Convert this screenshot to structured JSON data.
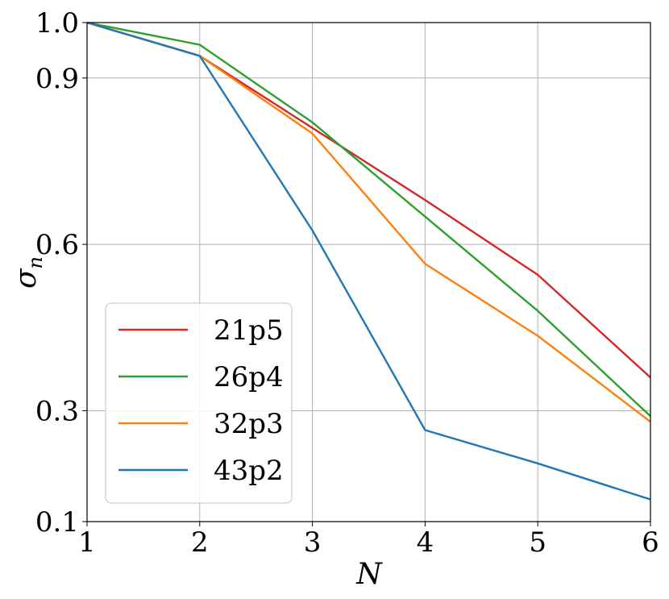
{
  "chart_data": {
    "type": "line",
    "title": "",
    "xlabel": "N",
    "ylabel": "σ",
    "ylabel_sub": "n",
    "x": [
      1,
      2,
      3,
      4,
      5,
      6
    ],
    "xlim": [
      1,
      6
    ],
    "ylim": [
      0.1,
      1.0
    ],
    "xticks": [
      1,
      2,
      3,
      4,
      5,
      6
    ],
    "yticks": [
      0.1,
      0.3,
      0.6,
      0.9,
      1.0
    ],
    "xtick_labels": [
      "1",
      "2",
      "3",
      "4",
      "5",
      "6"
    ],
    "ytick_labels": [
      "0.1",
      "0.3",
      "0.6",
      "0.9",
      "1.0"
    ],
    "grid": true,
    "legend_position": "lower-left",
    "series": [
      {
        "name": "21p5",
        "color": "#d62728",
        "values": [
          1.0,
          0.94,
          0.81,
          0.68,
          0.545,
          0.36
        ]
      },
      {
        "name": "26p4",
        "color": "#2ca02c",
        "values": [
          1.0,
          0.96,
          0.82,
          0.65,
          0.48,
          0.29
        ]
      },
      {
        "name": "32p3",
        "color": "#ff7f0e",
        "values": [
          1.0,
          0.94,
          0.8,
          0.565,
          0.435,
          0.28
        ]
      },
      {
        "name": "43p2",
        "color": "#1f77b4",
        "values": [
          1.0,
          0.94,
          0.625,
          0.265,
          0.205,
          0.14
        ]
      }
    ]
  }
}
